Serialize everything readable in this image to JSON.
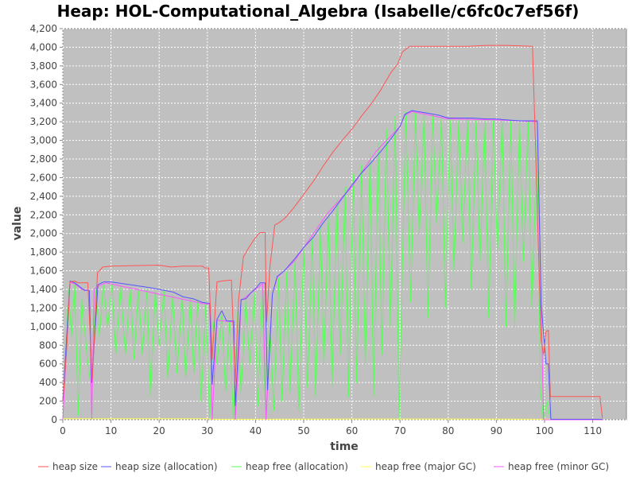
{
  "chart_data": {
    "type": "line",
    "title": "Heap: HOL-Computational_Algebra (Isabelle/c6fc0c7ef56f)",
    "xlabel": "time",
    "ylabel": "value",
    "xlim": [
      0,
      117
    ],
    "ylim": [
      0,
      4200
    ],
    "x_ticks": [
      0,
      10,
      20,
      30,
      40,
      50,
      60,
      70,
      80,
      90,
      100,
      110
    ],
    "y_ticks": [
      0,
      200,
      400,
      600,
      800,
      1000,
      1200,
      1400,
      1600,
      1800,
      2000,
      2200,
      2400,
      2600,
      2800,
      3000,
      3200,
      3400,
      3600,
      3800,
      4000,
      4200
    ],
    "y_tick_labels": [
      "0",
      "200",
      "400",
      "600",
      "800",
      "1,000",
      "1,200",
      "1,400",
      "1,600",
      "1,800",
      "2,000",
      "2,200",
      "2,400",
      "2,600",
      "2,800",
      "3,000",
      "3,200",
      "3,400",
      "3,600",
      "3,800",
      "4,000",
      "4,200"
    ],
    "grid": true,
    "legend_position": "bottom",
    "series": [
      {
        "name": "heap size",
        "color": "#ff5555",
        "points": [
          [
            0,
            200
          ],
          [
            0.8,
            750
          ],
          [
            1.5,
            1480
          ],
          [
            2.5,
            1490
          ],
          [
            3.2,
            1470
          ],
          [
            5.2,
            1470
          ],
          [
            6.1,
            430
          ],
          [
            7.2,
            1580
          ],
          [
            8.3,
            1640
          ],
          [
            10,
            1650
          ],
          [
            20,
            1660
          ],
          [
            22.5,
            1640
          ],
          [
            25,
            1650
          ],
          [
            29,
            1650
          ],
          [
            29.5,
            1630
          ],
          [
            30.3,
            1630
          ],
          [
            31,
            650
          ],
          [
            32,
            1480
          ],
          [
            33,
            1490
          ],
          [
            35,
            1500
          ],
          [
            35.8,
            400
          ],
          [
            36.5,
            1300
          ],
          [
            37.5,
            1750
          ],
          [
            38.5,
            1840
          ],
          [
            39.5,
            1920
          ],
          [
            40.5,
            1990
          ],
          [
            41,
            2010
          ],
          [
            42,
            2010
          ],
          [
            42.3,
            1050
          ],
          [
            43,
            1650
          ],
          [
            44,
            2090
          ],
          [
            45,
            2120
          ],
          [
            46,
            2160
          ],
          [
            48,
            2280
          ],
          [
            50,
            2420
          ],
          [
            52,
            2560
          ],
          [
            54,
            2720
          ],
          [
            56,
            2870
          ],
          [
            58,
            3000
          ],
          [
            60,
            3120
          ],
          [
            62,
            3260
          ],
          [
            64,
            3390
          ],
          [
            66,
            3540
          ],
          [
            68,
            3720
          ],
          [
            69.5,
            3820
          ],
          [
            70.5,
            3950
          ],
          [
            72,
            4010
          ],
          [
            75,
            4010
          ],
          [
            80,
            4010
          ],
          [
            84,
            4010
          ],
          [
            88,
            4020
          ],
          [
            92,
            4020
          ],
          [
            97.5,
            4010
          ],
          [
            98.2,
            2800
          ],
          [
            98.8,
            1700
          ],
          [
            99.3,
            850
          ],
          [
            99.8,
            700
          ],
          [
            100.3,
            950
          ],
          [
            100.8,
            960
          ],
          [
            101.2,
            250
          ],
          [
            105,
            250
          ],
          [
            111.5,
            250
          ],
          [
            112,
            20
          ]
        ]
      },
      {
        "name": "heap size (allocation)",
        "color": "#5555ff",
        "points": [
          [
            0,
            200
          ],
          [
            1.5,
            1490
          ],
          [
            2.5,
            1470
          ],
          [
            3.5,
            1430
          ],
          [
            4.5,
            1390
          ],
          [
            5.5,
            1390
          ],
          [
            6,
            400
          ],
          [
            7.3,
            1450
          ],
          [
            8.5,
            1480
          ],
          [
            10,
            1480
          ],
          [
            14,
            1450
          ],
          [
            18,
            1420
          ],
          [
            20,
            1400
          ],
          [
            23,
            1370
          ],
          [
            25,
            1320
          ],
          [
            27,
            1300
          ],
          [
            29,
            1260
          ],
          [
            30.5,
            1250
          ],
          [
            31,
            380
          ],
          [
            32,
            1080
          ],
          [
            33,
            1170
          ],
          [
            34,
            1060
          ],
          [
            35.5,
            1060
          ],
          [
            35.8,
            150
          ],
          [
            37,
            1290
          ],
          [
            38,
            1300
          ],
          [
            39,
            1360
          ],
          [
            40,
            1410
          ],
          [
            41,
            1470
          ],
          [
            42,
            1470
          ],
          [
            42.5,
            320
          ],
          [
            43.5,
            1350
          ],
          [
            44.5,
            1540
          ],
          [
            46,
            1600
          ],
          [
            48,
            1720
          ],
          [
            50,
            1850
          ],
          [
            52,
            1960
          ],
          [
            54,
            2110
          ],
          [
            56,
            2240
          ],
          [
            58,
            2380
          ],
          [
            60,
            2520
          ],
          [
            62,
            2650
          ],
          [
            64,
            2760
          ],
          [
            66,
            2880
          ],
          [
            68,
            3010
          ],
          [
            70,
            3150
          ],
          [
            71,
            3280
          ],
          [
            72.5,
            3320
          ],
          [
            76,
            3290
          ],
          [
            78,
            3270
          ],
          [
            80,
            3240
          ],
          [
            85,
            3240
          ],
          [
            88,
            3230
          ],
          [
            90,
            3230
          ],
          [
            92,
            3220
          ],
          [
            95,
            3210
          ],
          [
            98.5,
            3210
          ],
          [
            99.3,
            1250
          ],
          [
            100.3,
            600
          ],
          [
            100.8,
            600
          ],
          [
            101.3,
            5
          ],
          [
            105,
            5
          ],
          [
            112,
            5
          ]
        ]
      },
      {
        "name": "heap free (allocation)",
        "color": "#55ff55",
        "points": [
          [
            0,
            0
          ],
          [
            1.2,
            1400
          ],
          [
            1.8,
            900
          ],
          [
            2.5,
            1480
          ],
          [
            3.2,
            50
          ],
          [
            4,
            1300
          ],
          [
            5,
            700
          ],
          [
            6,
            300
          ],
          [
            6.8,
            1400
          ],
          [
            7.6,
            900
          ],
          [
            8.4,
            1450
          ],
          [
            9.3,
            1000
          ],
          [
            10.2,
            1450
          ],
          [
            11,
            700
          ],
          [
            12,
            1440
          ],
          [
            13,
            700
          ],
          [
            14,
            1420
          ],
          [
            14.8,
            650
          ],
          [
            15.7,
            1400
          ],
          [
            16.5,
            700
          ],
          [
            17.5,
            1400
          ],
          [
            18.2,
            250
          ],
          [
            19.2,
            1380
          ],
          [
            20,
            800
          ],
          [
            21,
            1380
          ],
          [
            21.8,
            450
          ],
          [
            22.8,
            1340
          ],
          [
            23.7,
            500
          ],
          [
            24.8,
            1320
          ],
          [
            25.5,
            450
          ],
          [
            26.5,
            1300
          ],
          [
            27.2,
            500
          ],
          [
            28,
            1280
          ],
          [
            28.7,
            200
          ],
          [
            29.7,
            1260
          ],
          [
            30.5,
            0
          ],
          [
            31.2,
            1050
          ],
          [
            32,
            600
          ],
          [
            33,
            1130
          ],
          [
            33.8,
            300
          ],
          [
            34.6,
            1060
          ],
          [
            35.4,
            0
          ],
          [
            36.3,
            1150
          ],
          [
            37,
            300
          ],
          [
            38,
            1290
          ],
          [
            38.8,
            600
          ],
          [
            39.8,
            1360
          ],
          [
            40.5,
            150
          ],
          [
            41.4,
            1430
          ],
          [
            42.1,
            0
          ],
          [
            43,
            1000
          ],
          [
            43.8,
            100
          ],
          [
            44.8,
            1520
          ],
          [
            45.5,
            200
          ],
          [
            46.5,
            1590
          ],
          [
            47.2,
            300
          ],
          [
            48.2,
            1700
          ],
          [
            49,
            100
          ],
          [
            50,
            1830
          ],
          [
            50.8,
            350
          ],
          [
            51.8,
            1950
          ],
          [
            52.5,
            250
          ],
          [
            53.5,
            2090
          ],
          [
            54.2,
            600
          ],
          [
            55.2,
            2230
          ],
          [
            55.9,
            350
          ],
          [
            56.9,
            2370
          ],
          [
            57.6,
            700
          ],
          [
            58.6,
            2500
          ],
          [
            59.3,
            250
          ],
          [
            60.3,
            2640
          ],
          [
            61,
            400
          ],
          [
            62,
            2740
          ],
          [
            62.8,
            600
          ],
          [
            63.8,
            2860
          ],
          [
            64.5,
            250
          ],
          [
            65.5,
            2980
          ],
          [
            66.2,
            700
          ],
          [
            67.2,
            3120
          ],
          [
            68,
            1000
          ],
          [
            69,
            3260
          ],
          [
            69.8,
            0
          ],
          [
            71.2,
            3300
          ],
          [
            72.2,
            1270
          ],
          [
            73.2,
            3290
          ],
          [
            74,
            2000
          ],
          [
            75,
            3280
          ],
          [
            75.8,
            1100
          ],
          [
            76.8,
            3270
          ],
          [
            77.6,
            2100
          ],
          [
            78.6,
            3250
          ],
          [
            79.4,
            1200
          ],
          [
            80.4,
            3240
          ],
          [
            81.2,
            1600
          ],
          [
            82.2,
            3240
          ],
          [
            83,
            1900
          ],
          [
            84,
            3240
          ],
          [
            84.8,
            1400
          ],
          [
            85.8,
            3230
          ],
          [
            86.6,
            1700
          ],
          [
            87.6,
            3230
          ],
          [
            88.4,
            1100
          ],
          [
            89.4,
            3220
          ],
          [
            90.2,
            1800
          ],
          [
            91.2,
            3220
          ],
          [
            92,
            1000
          ],
          [
            93,
            3220
          ],
          [
            93.8,
            1000
          ],
          [
            94.8,
            3210
          ],
          [
            95.6,
            1700
          ],
          [
            96.6,
            3210
          ],
          [
            97.4,
            1200
          ],
          [
            98.4,
            3000
          ],
          [
            99.2,
            300
          ],
          [
            99.8,
            0
          ],
          [
            100.5,
            200
          ],
          [
            101.2,
            0
          ],
          [
            105,
            0
          ],
          [
            112,
            0
          ]
        ]
      },
      {
        "name": "heap free (major GC)",
        "color": "#ffff55",
        "points": [
          [
            0,
            10
          ],
          [
            30,
            10
          ],
          [
            31,
            5
          ],
          [
            42,
            5
          ],
          [
            60,
            8
          ],
          [
            80,
            8
          ],
          [
            100,
            5
          ],
          [
            112,
            5
          ]
        ]
      },
      {
        "name": "heap free (minor GC)",
        "color": "#ff55ff",
        "points": [
          [
            0,
            0
          ],
          [
            1,
            1000
          ],
          [
            1.5,
            1480
          ],
          [
            2.5,
            1460
          ],
          [
            4,
            1400
          ],
          [
            5.5,
            1390
          ],
          [
            6,
            10
          ],
          [
            6.5,
            1400
          ],
          [
            7.5,
            1440
          ],
          [
            9,
            1470
          ],
          [
            29,
            1250
          ],
          [
            30.5,
            1240
          ],
          [
            31,
            0
          ],
          [
            32,
            1070
          ],
          [
            35.5,
            1050
          ],
          [
            35.8,
            0
          ],
          [
            36.5,
            650
          ],
          [
            37,
            1280
          ],
          [
            41.5,
            1460
          ],
          [
            42.2,
            0
          ],
          [
            43.5,
            1350
          ],
          [
            44.5,
            1530
          ],
          [
            48,
            1700
          ],
          [
            55,
            2220
          ],
          [
            60,
            2500
          ],
          [
            65,
            2880
          ],
          [
            70,
            3150
          ],
          [
            71,
            3270
          ],
          [
            72.5,
            3310
          ],
          [
            80,
            3230
          ],
          [
            90,
            3220
          ],
          [
            98.5,
            3200
          ],
          [
            99.3,
            1200
          ],
          [
            99.8,
            0
          ],
          [
            112,
            0
          ]
        ]
      }
    ]
  }
}
